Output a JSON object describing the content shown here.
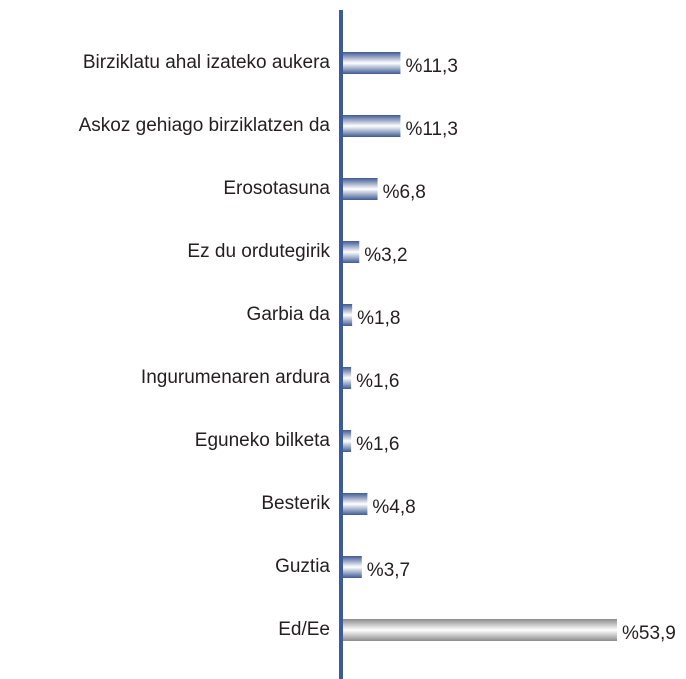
{
  "chart_data": {
    "type": "bar",
    "orientation": "horizontal",
    "categories": [
      "Birziklatu ahal izateko aukera",
      "Askoz gehiago birziklatzen da",
      "Erosotasuna",
      "Ez du ordutegirik",
      "Garbia da",
      "Ingurumenaren ardura",
      "Eguneko bilketa",
      "Besterik",
      "Guztia",
      "Ed/Ee"
    ],
    "values": [
      11.3,
      11.3,
      6.8,
      3.2,
      1.8,
      1.6,
      1.6,
      4.8,
      3.7,
      53.9
    ],
    "value_labels": [
      "%11,3",
      "%11,3",
      "%6,8",
      "%3,2",
      "%1,8",
      "%1,6",
      "%1,6",
      "%4,8",
      "%3,7",
      "%53,9"
    ],
    "colors": [
      "#3f5a93",
      "#3f5a93",
      "#3f5a93",
      "#3f5a93",
      "#3f5a93",
      "#3f5a93",
      "#3f5a93",
      "#3f5a93",
      "#3f5a93",
      "#8c8c8c"
    ],
    "axis_color": "#3b5b9a",
    "xlim": [
      0,
      60
    ]
  }
}
